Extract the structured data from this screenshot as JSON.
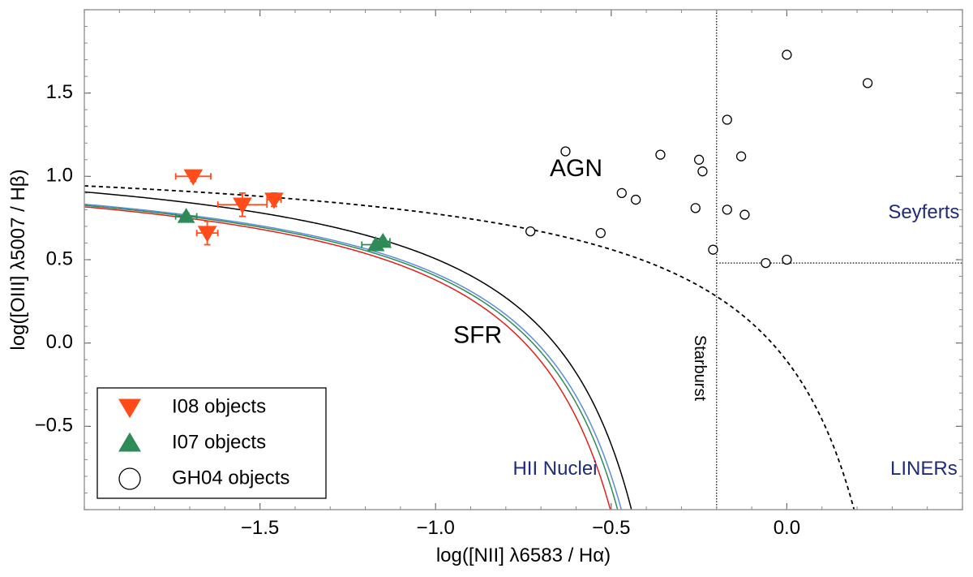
{
  "chart_data": {
    "type": "scatter",
    "xlabel": "log([NII] λ6583 / Hα)",
    "ylabel": "log([OIII] λ5007 / Hβ)",
    "xlim": [
      -2.0,
      0.5
    ],
    "ylim": [
      -1.0,
      2.0
    ],
    "xticks": [
      -1.5,
      -1.0,
      -0.5,
      0.0
    ],
    "xtick_labels": [
      "−1.5",
      "−1.0",
      "−0.5",
      "0.0"
    ],
    "yticks": [
      -0.5,
      0.0,
      0.5,
      1.0,
      1.5
    ],
    "ytick_labels": [
      "−0.5",
      "0.0",
      "0.5",
      "1.0",
      "1.5"
    ],
    "grid": false,
    "legend_position": "bottom-left",
    "series": [
      {
        "name": "I08 objects",
        "marker": "triangle-down",
        "color": "#ff4c1a",
        "points": [
          {
            "x": -1.69,
            "y": 1.0,
            "xerr": 0.05,
            "yerr": 0.03
          },
          {
            "x": -1.55,
            "y": 0.83,
            "xerr": 0.07,
            "yerr": 0.07
          },
          {
            "x": -1.46,
            "y": 0.86,
            "xerr": 0.02,
            "yerr": 0.04
          },
          {
            "x": -1.65,
            "y": 0.66,
            "xerr": 0.03,
            "yerr": 0.07
          }
        ]
      },
      {
        "name": "I07 objects",
        "marker": "triangle-up",
        "color": "#2e8b57",
        "points": [
          {
            "x": -1.71,
            "y": 0.76,
            "xerr": 0.03,
            "yerr": 0.02
          },
          {
            "x": -1.17,
            "y": 0.59,
            "xerr": 0.04,
            "yerr": 0.02
          },
          {
            "x": -1.15,
            "y": 0.61,
            "xerr": 0.02,
            "yerr": 0.02
          }
        ]
      },
      {
        "name": "GH04 objects",
        "marker": "circle-open",
        "color": "#000000",
        "points": [
          {
            "x": -0.63,
            "y": 1.15
          },
          {
            "x": -0.73,
            "y": 0.67
          },
          {
            "x": -0.53,
            "y": 0.66
          },
          {
            "x": -0.47,
            "y": 0.9
          },
          {
            "x": -0.43,
            "y": 0.86
          },
          {
            "x": -0.36,
            "y": 1.13
          },
          {
            "x": -0.26,
            "y": 0.81
          },
          {
            "x": -0.25,
            "y": 1.1
          },
          {
            "x": -0.24,
            "y": 1.03
          },
          {
            "x": -0.17,
            "y": 1.34
          },
          {
            "x": -0.17,
            "y": 0.8
          },
          {
            "x": -0.21,
            "y": 0.56
          },
          {
            "x": -0.13,
            "y": 1.12
          },
          {
            "x": -0.12,
            "y": 0.77
          },
          {
            "x": -0.06,
            "y": 0.48
          },
          {
            "x": 0.0,
            "y": 0.5
          },
          {
            "x": 0.0,
            "y": 1.73
          },
          {
            "x": 0.23,
            "y": 1.56
          }
        ]
      }
    ],
    "curves": [
      {
        "style": "solid",
        "color": "#000000",
        "a": 0.61,
        "b": -0.17,
        "c": 1.24
      },
      {
        "style": "dashed",
        "color": "#000000",
        "a": 0.61,
        "b": 0.47,
        "c": 1.19
      },
      {
        "style": "solid",
        "color": "#5b8ed6",
        "a": 0.61,
        "b": -0.19,
        "c": 1.17
      },
      {
        "style": "solid",
        "color": "#2e8b57",
        "a": 0.61,
        "b": -0.2,
        "c": 1.165
      },
      {
        "style": "solid",
        "color": "#e0201a",
        "a": 0.61,
        "b": -0.22,
        "c": 1.16
      }
    ],
    "reference_lines": [
      {
        "orientation": "vertical",
        "value": -0.2,
        "style": "dotted"
      },
      {
        "orientation": "horizontal",
        "value": 0.48,
        "from": -0.2,
        "style": "dotted"
      }
    ],
    "annotations": [
      {
        "text": "AGN",
        "x": -0.6,
        "y": 1.04,
        "color": "#000000",
        "size": 30
      },
      {
        "text": "SFR",
        "x": -0.88,
        "y": 0.04,
        "color": "#000000",
        "size": 30
      },
      {
        "text": "Starburst",
        "x": -0.25,
        "y": -0.15,
        "color": "#000000",
        "size": 20,
        "rotate": 90
      },
      {
        "text": "HII Nuclei",
        "x": -0.66,
        "y": -0.76,
        "color": "#1f2a78",
        "size": 24
      },
      {
        "text": "Seyferts",
        "x": 0.39,
        "y": 0.78,
        "color": "#1f2a78",
        "size": 24
      },
      {
        "text": "LINERs",
        "x": 0.39,
        "y": -0.76,
        "color": "#1f2a78",
        "size": 24
      }
    ]
  }
}
